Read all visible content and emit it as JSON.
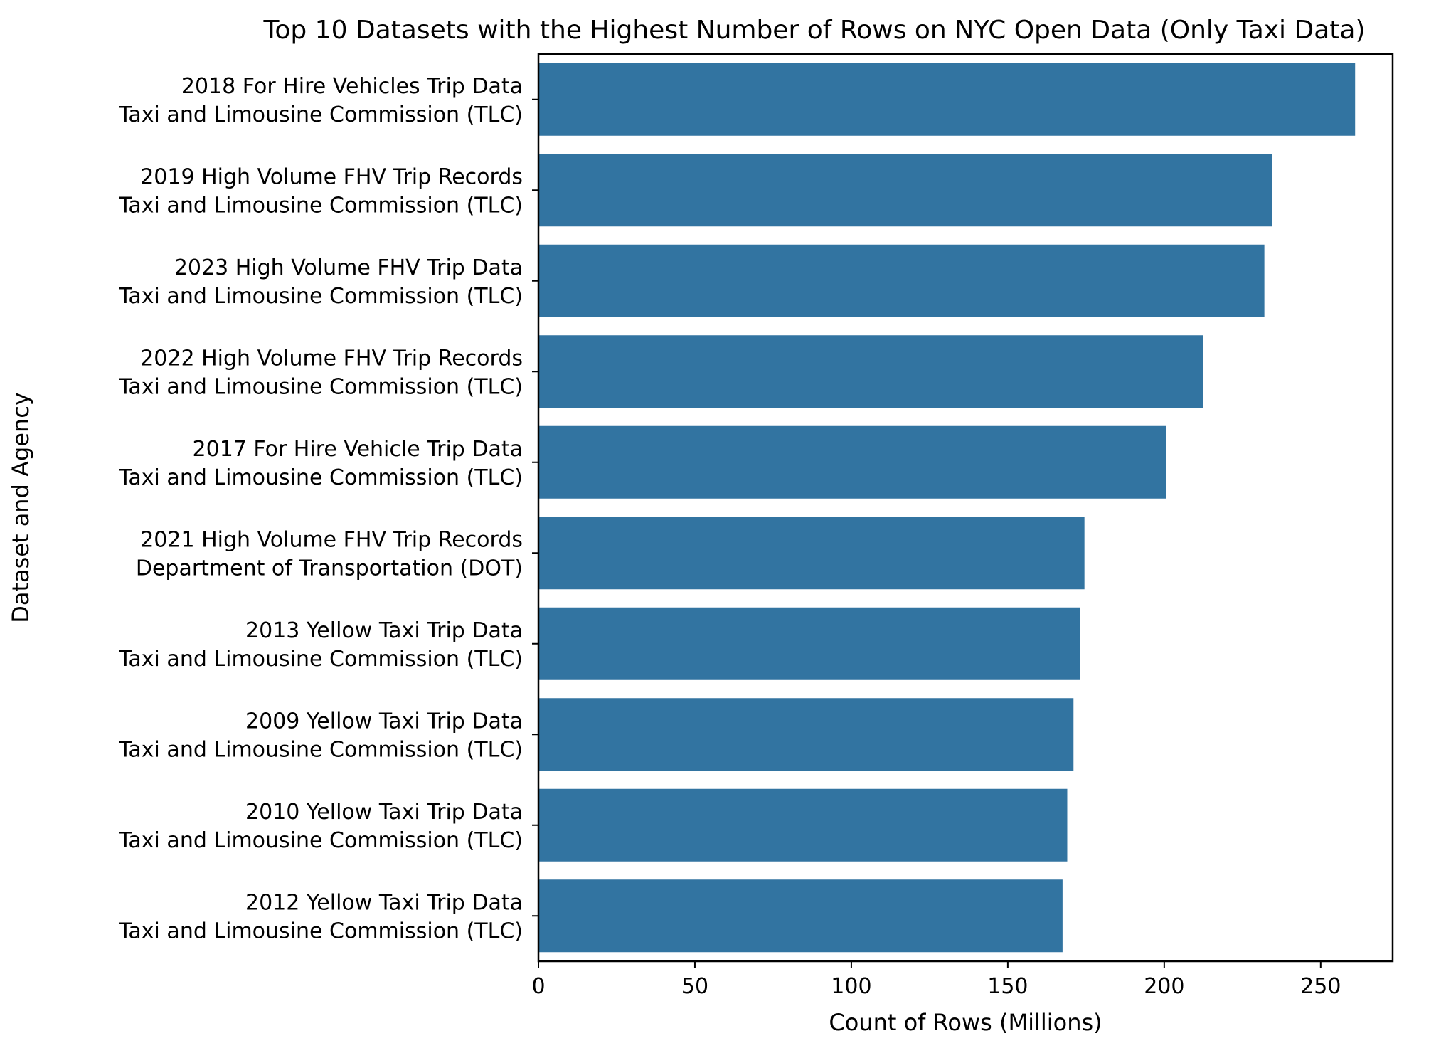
{
  "chart_data": {
    "type": "bar",
    "orientation": "horizontal",
    "title": "Top 10 Datasets with the Highest Number of Rows on NYC Open Data (Only Taxi Data)",
    "xlabel": "Count of Rows (Millions)",
    "ylabel": "Dataset and Agency",
    "xlim": [
      0,
      273
    ],
    "xticks": [
      0,
      50,
      100,
      150,
      200,
      250
    ],
    "grid": false,
    "legend": "none",
    "bar_color": "#3274a1",
    "categories": [
      [
        "2018 For Hire Vehicles Trip Data",
        "Taxi and Limousine Commission (TLC)"
      ],
      [
        "2019 High Volume FHV Trip Records",
        "Taxi and Limousine Commission (TLC)"
      ],
      [
        "2023 High Volume FHV Trip Data",
        "Taxi and Limousine Commission (TLC)"
      ],
      [
        "2022 High Volume FHV Trip Records",
        "Taxi and Limousine Commission (TLC)"
      ],
      [
        "2017 For Hire Vehicle Trip Data",
        "Taxi and Limousine Commission (TLC)"
      ],
      [
        "2021 High Volume FHV Trip Records",
        "Department of Transportation (DOT)"
      ],
      [
        "2013 Yellow Taxi Trip Data",
        "Taxi and Limousine Commission (TLC)"
      ],
      [
        "2009 Yellow Taxi Trip Data",
        "Taxi and Limousine Commission (TLC)"
      ],
      [
        "2010 Yellow Taxi Trip Data",
        "Taxi and Limousine Commission (TLC)"
      ],
      [
        "2012 Yellow Taxi Trip Data",
        "Taxi and Limousine Commission (TLC)"
      ]
    ],
    "values": [
      261,
      234.5,
      232,
      212.5,
      200.5,
      174.5,
      173,
      171,
      169,
      167.5
    ]
  }
}
